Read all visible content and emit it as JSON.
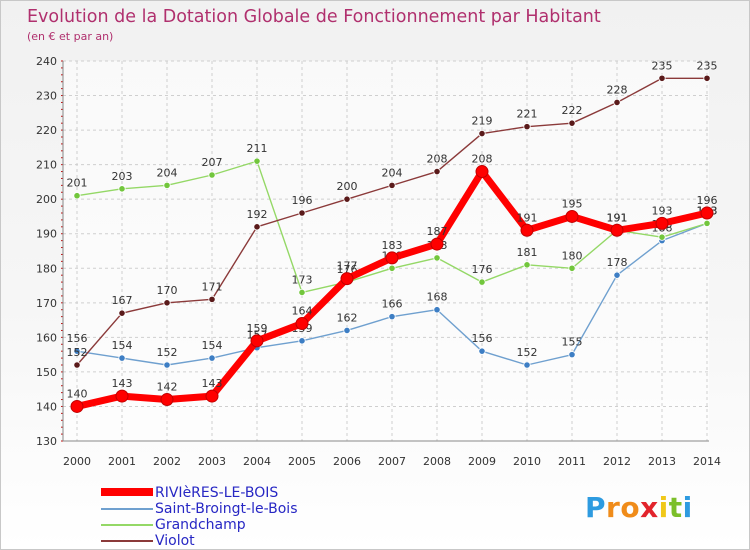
{
  "header": {
    "title": "Evolution de la Dotation Globale de Fonctionnement par Habitant",
    "subtitle": "(en € et par an)"
  },
  "logo": {
    "text": "Proxiti",
    "letters": [
      "P",
      "r",
      "o",
      "x",
      "i",
      "t",
      "i"
    ],
    "colors": [
      "#2e9be0",
      "#f08c1a",
      "#f08c1a",
      "#e2242c",
      "#f0c81a",
      "#7cbf2a",
      "#2e9be0"
    ]
  },
  "chart_data": {
    "type": "line",
    "title": "Evolution de la Dotation Globale de Fonctionnement par Habitant",
    "subtitle": "(en € et par an)",
    "xlabel": "",
    "ylabel": "",
    "ylim": [
      130,
      240
    ],
    "yticks": [
      130,
      140,
      150,
      160,
      170,
      180,
      190,
      200,
      210,
      220,
      230,
      240
    ],
    "categories": [
      "2000",
      "2001",
      "2002",
      "2003",
      "2004",
      "2005",
      "2006",
      "2007",
      "2008",
      "2009",
      "2010",
      "2011",
      "2012",
      "2013",
      "2014"
    ],
    "legend_position": "bottom-left",
    "series": [
      {
        "name": "RIVIèRES-LE-BOIS",
        "color": "#ff0000",
        "marker": "#ff0000",
        "emphasis": true,
        "values": [
          140,
          143,
          142,
          143,
          159,
          164,
          177,
          183,
          187,
          208,
          191,
          195,
          191,
          193,
          196
        ]
      },
      {
        "name": "Saint-Broingt-le-Bois",
        "color": "#6fa0cf",
        "marker": "#3d7ec4",
        "emphasis": false,
        "values": [
          156,
          154,
          152,
          154,
          157,
          159,
          162,
          166,
          168,
          156,
          152,
          155,
          178,
          188,
          193
        ]
      },
      {
        "name": "Grandchamp",
        "color": "#94d866",
        "marker": "#72c63c",
        "emphasis": false,
        "values": [
          201,
          203,
          204,
          207,
          211,
          173,
          176,
          180,
          183,
          176,
          181,
          180,
          191,
          189,
          193
        ]
      },
      {
        "name": "Violot",
        "color": "#8b3a3a",
        "marker": "#5a1a1a",
        "emphasis": false,
        "values": [
          152,
          167,
          170,
          171,
          192,
          196,
          200,
          204,
          208,
          219,
          221,
          222,
          228,
          235,
          235
        ]
      }
    ]
  }
}
